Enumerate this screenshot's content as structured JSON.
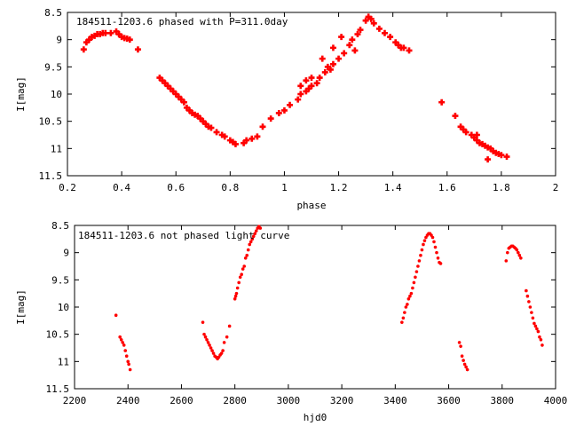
{
  "colors": {
    "points": "#ff0000",
    "axes": "#000000",
    "background": "#ffffff"
  },
  "chart_data": [
    {
      "type": "scatter",
      "title": "184511-1203.6 phased with P=311.0day",
      "xlabel": "phase",
      "ylabel": "I[mag]",
      "xlim": [
        0.2,
        2.0
      ],
      "ylim": [
        11.5,
        8.5
      ],
      "y_inverted": true,
      "xticks": [
        "0.2",
        "0.4",
        "0.6",
        "0.8",
        "1",
        "1.2",
        "1.4",
        "1.6",
        "1.8",
        "2"
      ],
      "yticks": [
        "8.5",
        "9",
        "9.5",
        "10",
        "10.5",
        "11",
        "11.5"
      ],
      "marker": "plus",
      "x": [
        0.26,
        0.27,
        0.28,
        0.29,
        0.3,
        0.31,
        0.32,
        0.33,
        0.34,
        0.36,
        0.38,
        0.39,
        0.4,
        0.41,
        0.42,
        0.43,
        0.46,
        0.54,
        0.55,
        0.56,
        0.57,
        0.58,
        0.59,
        0.6,
        0.61,
        0.62,
        0.63,
        0.64,
        0.65,
        0.66,
        0.67,
        0.68,
        0.69,
        0.7,
        0.71,
        0.72,
        0.73,
        0.75,
        0.77,
        0.78,
        0.8,
        0.81,
        0.82,
        0.85,
        0.86,
        0.88,
        0.9,
        0.92,
        0.95,
        0.98,
        1.0,
        1.02,
        1.05,
        1.06,
        1.08,
        1.09,
        1.1,
        1.12,
        1.13,
        1.15,
        1.17,
        1.18,
        1.2,
        1.22,
        1.24,
        1.25,
        1.27,
        1.28,
        1.3,
        1.31,
        1.32,
        1.33,
        1.35,
        1.37,
        1.39,
        1.41,
        1.43,
        1.46,
        1.58,
        1.63,
        1.65,
        1.66,
        1.67,
        1.69,
        1.7,
        1.71,
        1.72,
        1.73,
        1.74,
        1.75,
        1.76,
        1.77,
        1.78,
        1.79,
        1.8,
        1.82,
        1.06,
        1.1,
        1.14,
        1.18,
        1.21,
        1.08,
        1.16,
        1.26,
        1.42,
        1.44,
        1.75,
        1.71
      ],
      "y": [
        9.18,
        9.05,
        9.0,
        8.95,
        8.93,
        8.9,
        8.9,
        8.88,
        8.88,
        8.88,
        8.85,
        8.9,
        8.95,
        8.97,
        8.98,
        9.0,
        9.18,
        9.7,
        9.75,
        9.8,
        9.85,
        9.9,
        9.95,
        10.0,
        10.05,
        10.1,
        10.15,
        10.25,
        10.3,
        10.35,
        10.38,
        10.4,
        10.45,
        10.5,
        10.55,
        10.6,
        10.62,
        10.7,
        10.75,
        10.78,
        10.85,
        10.88,
        10.92,
        10.9,
        10.85,
        10.82,
        10.78,
        10.6,
        10.45,
        10.35,
        10.3,
        10.2,
        10.1,
        10.0,
        9.95,
        9.9,
        9.85,
        9.8,
        9.7,
        9.6,
        9.55,
        9.45,
        9.35,
        9.25,
        9.1,
        9.0,
        8.9,
        8.82,
        8.65,
        8.58,
        8.62,
        8.7,
        8.8,
        8.88,
        8.95,
        9.05,
        9.15,
        9.2,
        10.15,
        10.4,
        10.6,
        10.65,
        10.7,
        10.75,
        10.8,
        10.85,
        10.9,
        10.92,
        10.95,
        10.98,
        11.0,
        11.05,
        11.08,
        11.1,
        11.12,
        11.15,
        9.85,
        9.7,
        9.35,
        9.15,
        8.95,
        9.75,
        9.5,
        9.2,
        9.1,
        9.15,
        11.2,
        10.75
      ]
    },
    {
      "type": "scatter",
      "title": "184511-1203.6 not phased light curve",
      "xlabel": "hjd0",
      "ylabel": "I[mag]",
      "xlim": [
        2200,
        4000
      ],
      "ylim": [
        11.5,
        8.5
      ],
      "y_inverted": true,
      "xticks": [
        "2200",
        "2400",
        "2600",
        "2800",
        "3000",
        "3200",
        "3400",
        "3600",
        "3800",
        "4000"
      ],
      "yticks": [
        "8.5",
        "9",
        "9.5",
        "10",
        "10.5",
        "11",
        "11.5"
      ],
      "marker": "dot",
      "x": [
        2355,
        2370,
        2375,
        2380,
        2385,
        2390,
        2395,
        2400,
        2403,
        2408,
        2680,
        2685,
        2690,
        2695,
        2700,
        2705,
        2710,
        2715,
        2720,
        2725,
        2730,
        2735,
        2740,
        2745,
        2750,
        2755,
        2760,
        2770,
        2780,
        2800,
        2803,
        2806,
        2810,
        2815,
        2820,
        2825,
        2830,
        2835,
        2840,
        2845,
        2850,
        2855,
        2860,
        2865,
        2870,
        2875,
        2880,
        2885,
        2890,
        2895,
        3425,
        3430,
        3435,
        3440,
        3445,
        3450,
        3455,
        3460,
        3465,
        3470,
        3475,
        3480,
        3485,
        3490,
        3495,
        3500,
        3505,
        3510,
        3515,
        3520,
        3525,
        3530,
        3535,
        3540,
        3545,
        3550,
        3555,
        3560,
        3565,
        3570,
        3640,
        3645,
        3650,
        3655,
        3660,
        3665,
        3670,
        3815,
        3820,
        3825,
        3830,
        3835,
        3840,
        3845,
        3850,
        3855,
        3860,
        3865,
        3870,
        3890,
        3895,
        3900,
        3905,
        3910,
        3915,
        3920,
        3925,
        3930,
        3935,
        3940,
        3945,
        3950
      ],
      "y": [
        10.15,
        10.55,
        10.6,
        10.65,
        10.7,
        10.8,
        10.9,
        11.0,
        11.05,
        11.15,
        10.28,
        10.5,
        10.55,
        10.6,
        10.65,
        10.7,
        10.75,
        10.8,
        10.85,
        10.9,
        10.92,
        10.95,
        10.92,
        10.88,
        10.85,
        10.8,
        10.65,
        10.55,
        10.35,
        9.85,
        9.8,
        9.75,
        9.65,
        9.55,
        9.45,
        9.4,
        9.3,
        9.25,
        9.1,
        9.05,
        8.95,
        8.85,
        8.8,
        8.75,
        8.7,
        8.65,
        8.6,
        8.55,
        8.52,
        8.55,
        10.28,
        10.2,
        10.1,
        10.0,
        9.95,
        9.85,
        9.8,
        9.75,
        9.65,
        9.55,
        9.45,
        9.35,
        9.25,
        9.15,
        9.05,
        8.95,
        8.85,
        8.78,
        8.72,
        8.68,
        8.65,
        8.65,
        8.68,
        8.72,
        8.8,
        8.9,
        9.0,
        9.1,
        9.18,
        9.2,
        10.65,
        10.72,
        10.9,
        10.98,
        11.05,
        11.1,
        11.15,
        9.15,
        9.0,
        8.92,
        8.9,
        8.88,
        8.88,
        8.9,
        8.92,
        8.95,
        9.0,
        9.05,
        9.1,
        9.7,
        9.8,
        9.9,
        10.0,
        10.1,
        10.2,
        10.3,
        10.35,
        10.4,
        10.45,
        10.55,
        10.6,
        10.7
      ]
    }
  ]
}
